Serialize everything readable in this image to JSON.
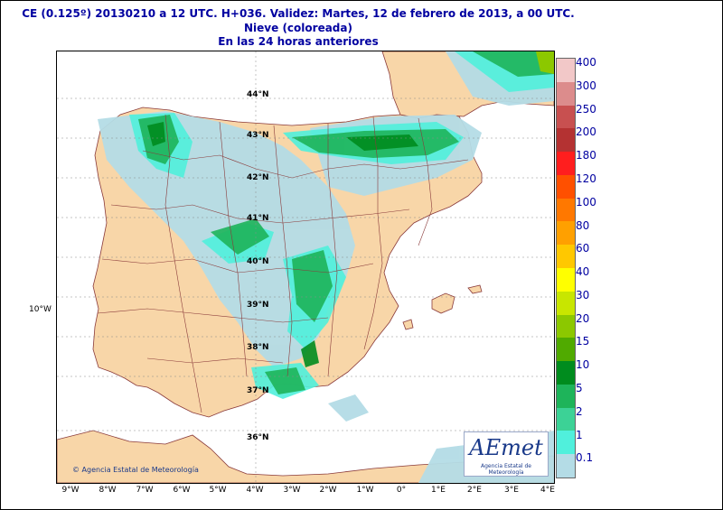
{
  "header": {
    "line1": "CE (0.125º) 20130210 a 12 UTC.  H+036. Validez: Martes, 12 de febrero de 2013,  a  00 UTC.",
    "line2": "Nieve (coloreada)",
    "line3": "En las 24 horas anteriores"
  },
  "axes": {
    "longitude_ticks": [
      "9°W",
      "8°W",
      "7°W",
      "6°W",
      "5°W",
      "4°W",
      "3°W",
      "2°W",
      "1°W",
      "0°",
      "1°E",
      "2°E",
      "3°E",
      "4°E"
    ],
    "outer_latitude_label": "10°W",
    "inner_latitude_labels": [
      "44°N",
      "43°N",
      "42°N",
      "41°N",
      "40°N",
      "39°N",
      "38°N",
      "37°N",
      "36°N"
    ]
  },
  "legend": {
    "values": [
      "400",
      "300",
      "250",
      "200",
      "180",
      "120",
      "100",
      "80",
      "60",
      "40",
      "30",
      "20",
      "15",
      "10",
      "5",
      "2",
      "1",
      "0.1"
    ],
    "colors": [
      "#f2c8c8",
      "#dc8c8c",
      "#c85050",
      "#b43232",
      "#ff1e1e",
      "#ff5000",
      "#ff7800",
      "#ffa000",
      "#ffc800",
      "#ffff00",
      "#c8e600",
      "#8cc800",
      "#50aa00",
      "#008c1e",
      "#1eb45a",
      "#3cd296",
      "#50f0dc",
      "#b4dce6"
    ]
  },
  "branding": {
    "logo_text": "AEmet",
    "logo_subtitle": "Agencia Estatal de Meteorología",
    "credit": "© Agencia Estatal de Meteorología"
  }
}
